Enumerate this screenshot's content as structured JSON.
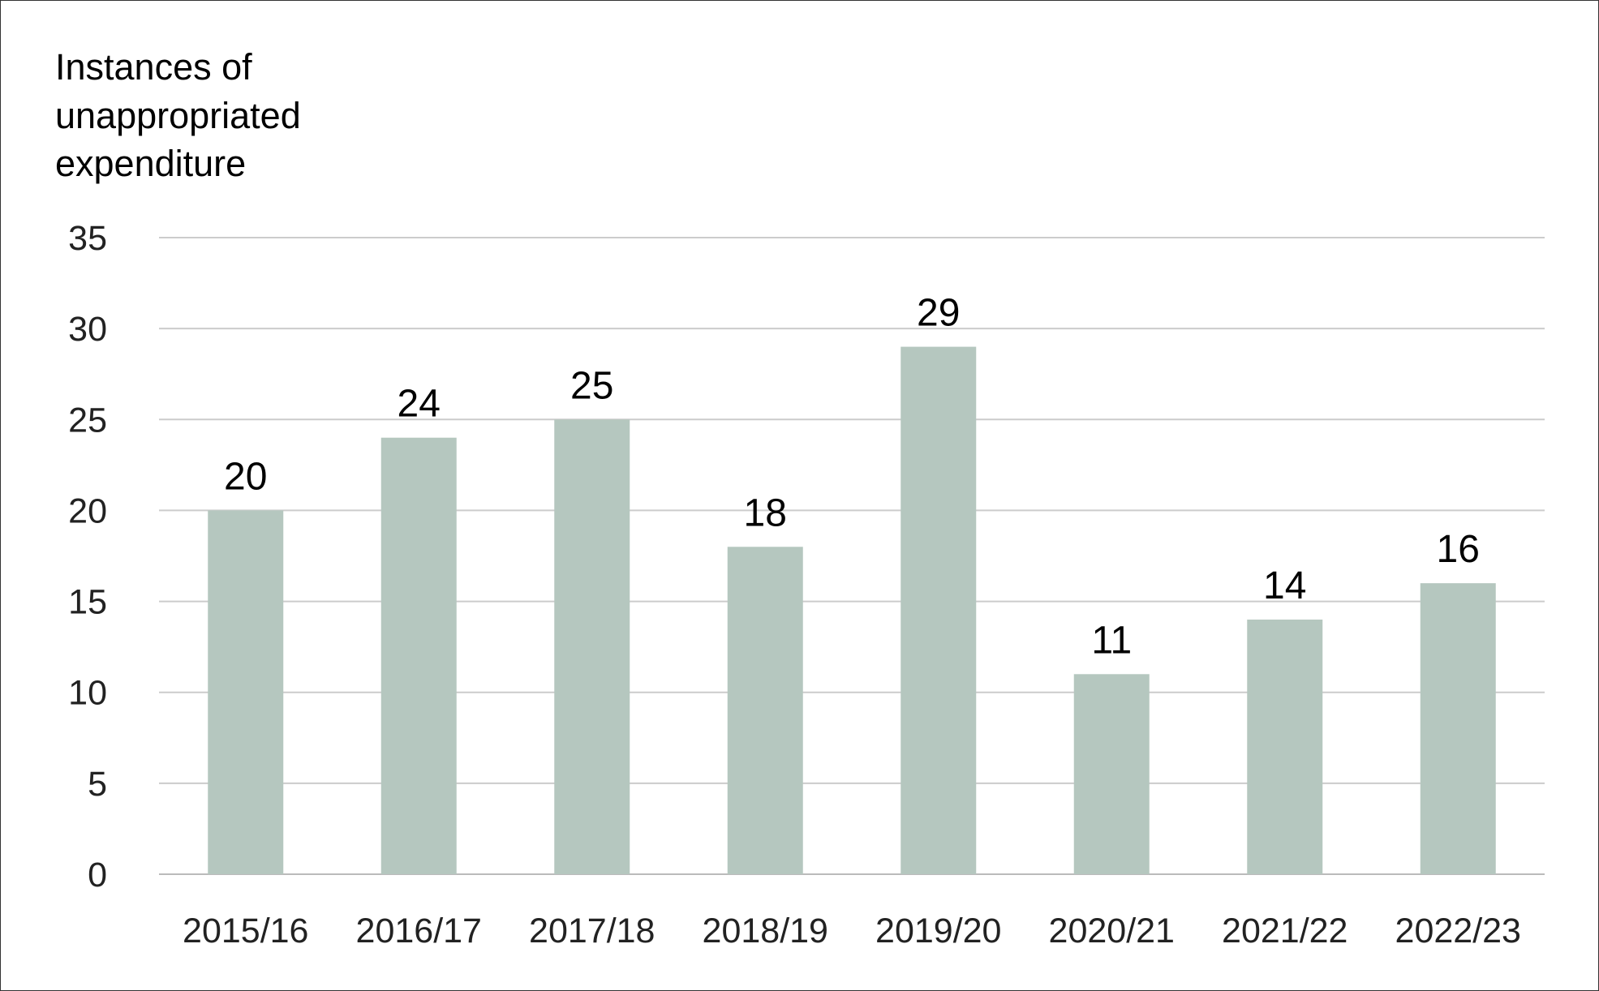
{
  "chart_data": {
    "type": "bar",
    "ylabel": "Instances of unappropriated expenditure",
    "ylabel_lines": [
      "Instances of",
      "unappropriated",
      "expenditure"
    ],
    "categories": [
      "2015/16",
      "2016/17",
      "2017/18",
      "2018/19",
      "2019/20",
      "2020/21",
      "2021/22",
      "2022/23"
    ],
    "values": [
      20,
      24,
      25,
      18,
      29,
      11,
      14,
      16
    ],
    "ylim": [
      0,
      35
    ],
    "yticks": [
      0,
      5,
      10,
      15,
      20,
      25,
      30,
      35
    ],
    "grid": true,
    "legend": "none",
    "bar_color": "#b5c7bf",
    "grid_color": "#cccccc"
  }
}
